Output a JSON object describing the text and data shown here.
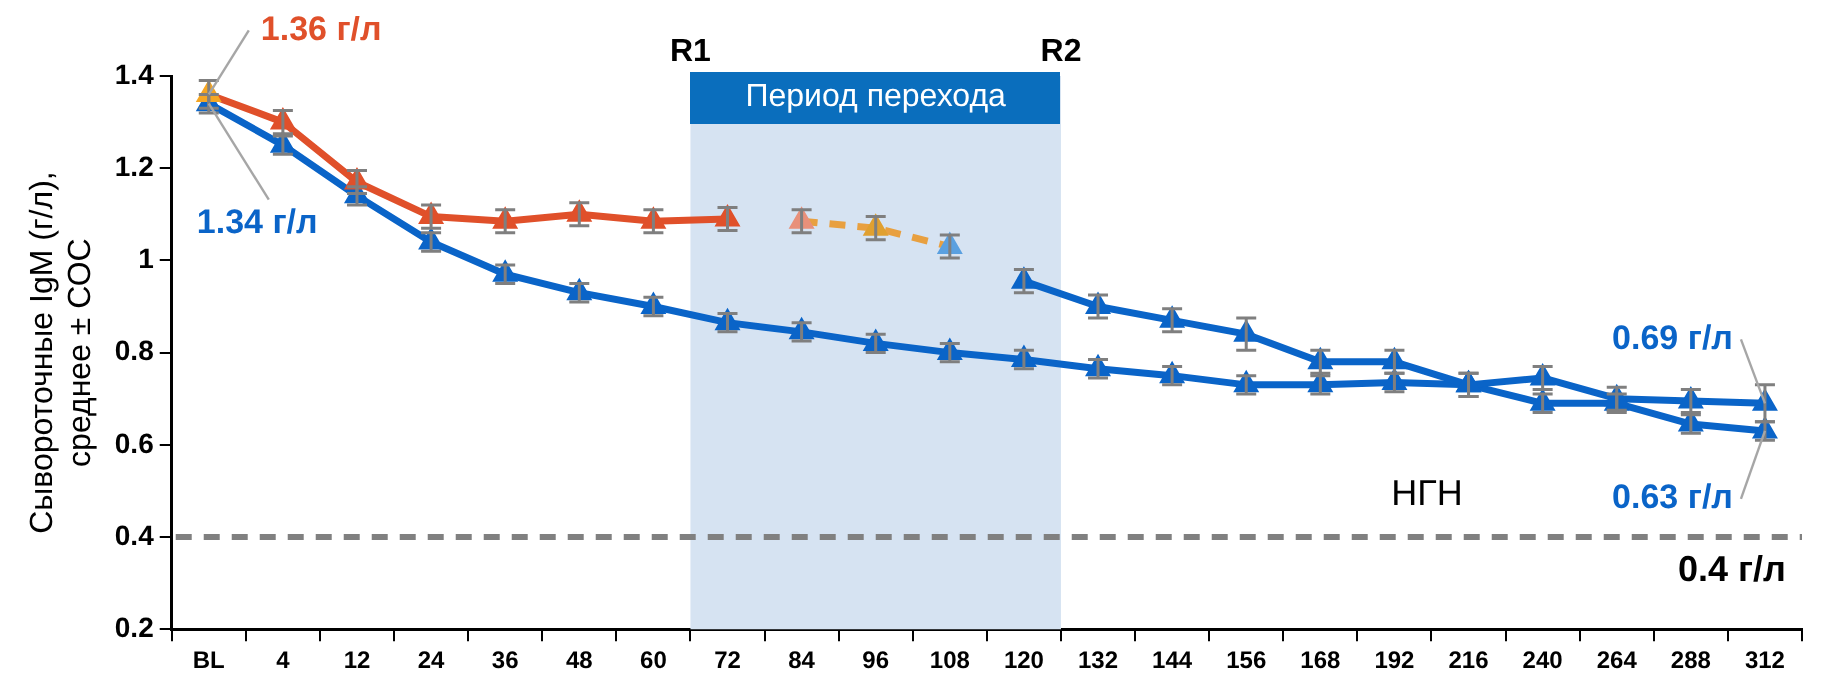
{
  "chart_data": {
    "type": "line",
    "ylabel": "Сывороточные IgM (г/л),\nсреднее ± СОС",
    "categories": [
      "BL",
      "4",
      "12",
      "24",
      "36",
      "48",
      "60",
      "72",
      "84",
      "96",
      "108",
      "120",
      "132",
      "144",
      "156",
      "168",
      "192",
      "216",
      "240",
      "264",
      "288",
      "312"
    ],
    "ylim": [
      0.2,
      1.4
    ],
    "yticks": [
      0.2,
      0.4,
      0.6,
      0.8,
      1,
      1.2,
      1.4
    ],
    "grid": false,
    "legend": false,
    "marker": "triangle",
    "series": [
      {
        "color": "#e0502a",
        "colors": [
          "#f5a623",
          "#e0502a",
          "#e0502a",
          "#e0502a",
          "#e0502a",
          "#e0502a",
          "#e0502a",
          "#e0502a",
          null,
          null,
          null,
          null,
          null,
          null,
          null,
          null,
          null,
          null,
          null,
          null,
          null,
          null
        ],
        "line_style": "solid",
        "values": [
          1.36,
          1.3,
          1.17,
          1.095,
          1.085,
          1.1,
          1.085,
          1.09,
          null,
          null,
          null,
          null,
          null,
          null,
          null,
          null,
          null,
          null,
          null,
          null,
          null,
          null
        ],
        "errors": [
          0.03,
          0.025,
          0.025,
          0.025,
          0.025,
          0.025,
          0.025,
          0.025,
          null,
          null,
          null,
          null,
          null,
          null,
          null,
          null,
          null,
          null,
          null,
          null,
          null,
          null
        ]
      },
      {
        "color": "#e8a040",
        "colors": [
          null,
          null,
          null,
          null,
          null,
          null,
          null,
          null,
          "#e8907a",
          "#e0a030",
          "#5aa0e0",
          null,
          null,
          null,
          null,
          null,
          null,
          null,
          null,
          null,
          null,
          null
        ],
        "line_style": "dashed",
        "values": [
          null,
          null,
          null,
          null,
          null,
          null,
          null,
          null,
          1.085,
          1.07,
          1.03,
          null,
          null,
          null,
          null,
          null,
          null,
          null,
          null,
          null,
          null,
          null
        ],
        "errors": [
          null,
          null,
          null,
          null,
          null,
          null,
          null,
          null,
          0.025,
          0.025,
          0.025,
          null,
          null,
          null,
          null,
          null,
          null,
          null,
          null,
          null,
          null,
          null
        ]
      },
      {
        "color": "#0a64c8",
        "line_style": "solid",
        "values": [
          null,
          null,
          null,
          null,
          null,
          null,
          null,
          null,
          null,
          null,
          null,
          0.955,
          0.9,
          0.87,
          0.84,
          0.78,
          0.78,
          0.73,
          0.745,
          0.7,
          0.695,
          0.69
        ],
        "errors": [
          null,
          null,
          null,
          null,
          null,
          null,
          null,
          null,
          null,
          null,
          null,
          0.025,
          0.025,
          0.025,
          0.035,
          0.025,
          0.025,
          0.025,
          0.025,
          0.025,
          0.025,
          0.04
        ]
      },
      {
        "color": "#0a64c8",
        "line_style": "solid",
        "values": [
          1.34,
          1.25,
          1.14,
          1.04,
          0.97,
          0.93,
          0.9,
          0.865,
          0.845,
          0.82,
          0.8,
          0.785,
          0.765,
          0.75,
          0.73,
          0.73,
          0.735,
          0.73,
          0.69,
          0.69,
          0.645,
          0.63
        ],
        "errors": [
          0.02,
          0.02,
          0.02,
          0.02,
          0.02,
          0.02,
          0.02,
          0.02,
          0.02,
          0.02,
          0.02,
          0.02,
          0.02,
          0.02,
          0.02,
          0.02,
          0.02,
          0.025,
          0.02,
          0.02,
          0.02,
          0.02
        ]
      }
    ],
    "bands": [
      {
        "axis": "x",
        "from": "72",
        "to": "120",
        "label": "Период перехода",
        "color": "#d6e3f2"
      }
    ],
    "ref_lines": [
      {
        "axis": "y",
        "value": 0.4,
        "label": "0.4 г/л",
        "color": "#808080",
        "line_style": "dashed"
      }
    ],
    "annotations": [
      {
        "text": "1.36 г/л",
        "x": "BL",
        "y": 1.36
      },
      {
        "text": "1.34 г/л",
        "x": "BL",
        "y": 1.34
      },
      {
        "text": "0.69 г/л",
        "x": "312",
        "y": 0.69
      },
      {
        "text": "0.63 г/л",
        "x": "312",
        "y": 0.63
      },
      "R1",
      "R2",
      "НГН"
    ]
  }
}
